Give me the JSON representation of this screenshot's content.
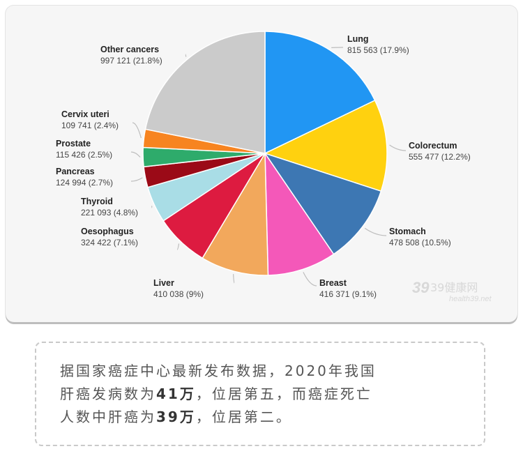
{
  "chart_data": {
    "type": "pie",
    "slices": [
      {
        "name": "Lung",
        "value_text": "815 563 (17.9%)",
        "value": 815563,
        "percent": 17.9,
        "color": "#2196F3"
      },
      {
        "name": "Colorectum",
        "value_text": "555 477 (12.2%)",
        "value": 555477,
        "percent": 12.2,
        "color": "#FFD10F"
      },
      {
        "name": "Stomach",
        "value_text": "478 508 (10.5%)",
        "value": 478508,
        "percent": 10.5,
        "color": "#3D77B3"
      },
      {
        "name": "Breast",
        "value_text": "416 371 (9.1%)",
        "value": 416371,
        "percent": 9.1,
        "color": "#F458B9"
      },
      {
        "name": "Liver",
        "value_text": "410 038 (9%)",
        "value": 410038,
        "percent": 9.0,
        "color": "#F2A85C"
      },
      {
        "name": "Oesophagus",
        "value_text": "324 422 (7.1%)",
        "value": 324422,
        "percent": 7.1,
        "color": "#DD1B40"
      },
      {
        "name": "Thyroid",
        "value_text": "221 093 (4.8%)",
        "value": 221093,
        "percent": 4.8,
        "color": "#A9DDE6"
      },
      {
        "name": "Pancreas",
        "value_text": "124 994 (2.7%)",
        "value": 124994,
        "percent": 2.7,
        "color": "#9B0A17"
      },
      {
        "name": "Prostate",
        "value_text": "115 426 (2.5%)",
        "value": 115426,
        "percent": 2.5,
        "color": "#2EAB6B"
      },
      {
        "name": "Cervix uteri",
        "value_text": "109 741 (2.4%)",
        "value": 109741,
        "percent": 2.4,
        "color": "#F78420"
      },
      {
        "name": "Other cancers",
        "value_text": "997 121 (21.8%)",
        "value": 997121,
        "percent": 21.8,
        "color": "#CBCBCB"
      }
    ]
  },
  "watermark": {
    "number": "39",
    "name": "39健康网",
    "url": "health39.net"
  },
  "caption": {
    "line1": "据国家癌症中心最新发布数据，2020年我国",
    "line2_before": "肝癌发病数为",
    "line2_bold": "41万",
    "line2_after": "，位居第五，而癌症死亡",
    "line3_before": "人数中肝癌为",
    "line3_bold": "39万",
    "line3_after": "，位居第二。"
  }
}
